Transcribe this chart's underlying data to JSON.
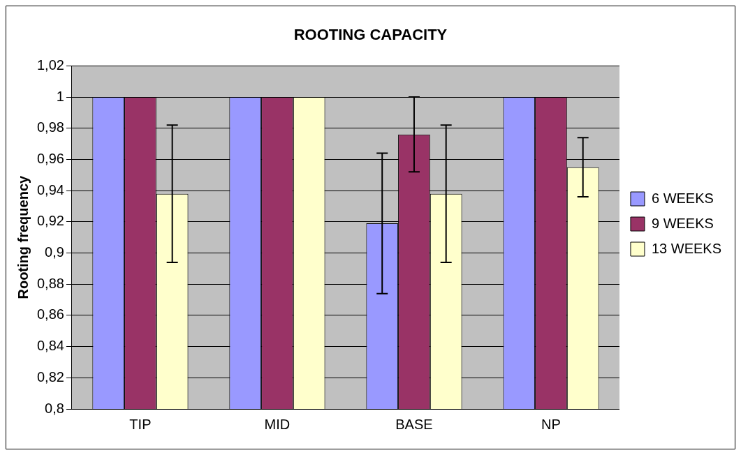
{
  "chart_data": {
    "type": "bar",
    "title": "ROOTING CAPACITY",
    "ylabel": "Rooting frequency",
    "categories": [
      "TIP",
      "MID",
      "BASE",
      "NP"
    ],
    "series": [
      {
        "name": "6 WEEKS",
        "color": "#9999ff",
        "values": [
          1,
          1,
          0.919,
          1
        ],
        "errors": [
          null,
          null,
          0.045,
          null
        ]
      },
      {
        "name": "9 WEEKS",
        "color": "#993366",
        "values": [
          1,
          1,
          0.976,
          1
        ],
        "errors": [
          null,
          null,
          0.024,
          null
        ]
      },
      {
        "name": "13 WEEKS",
        "color": "#ffffcc",
        "values": [
          0.938,
          1,
          0.938,
          0.955
        ],
        "errors": [
          0.044,
          null,
          0.044,
          0.019
        ]
      }
    ],
    "ylim": [
      0.8,
      1.02
    ],
    "yticks": [
      {
        "value": 0.8,
        "label": "0,8"
      },
      {
        "value": 0.82,
        "label": "0,82"
      },
      {
        "value": 0.84,
        "label": "0,84"
      },
      {
        "value": 0.86,
        "label": "0,86"
      },
      {
        "value": 0.88,
        "label": "0,88"
      },
      {
        "value": 0.9,
        "label": "0,9"
      },
      {
        "value": 0.92,
        "label": "0,92"
      },
      {
        "value": 0.94,
        "label": "0,94"
      },
      {
        "value": 0.96,
        "label": "0,96"
      },
      {
        "value": 0.98,
        "label": "0,98"
      },
      {
        "value": 1,
        "label": "1"
      },
      {
        "value": 1.02,
        "label": "1,02"
      }
    ],
    "grid": "y",
    "legend": "right"
  }
}
